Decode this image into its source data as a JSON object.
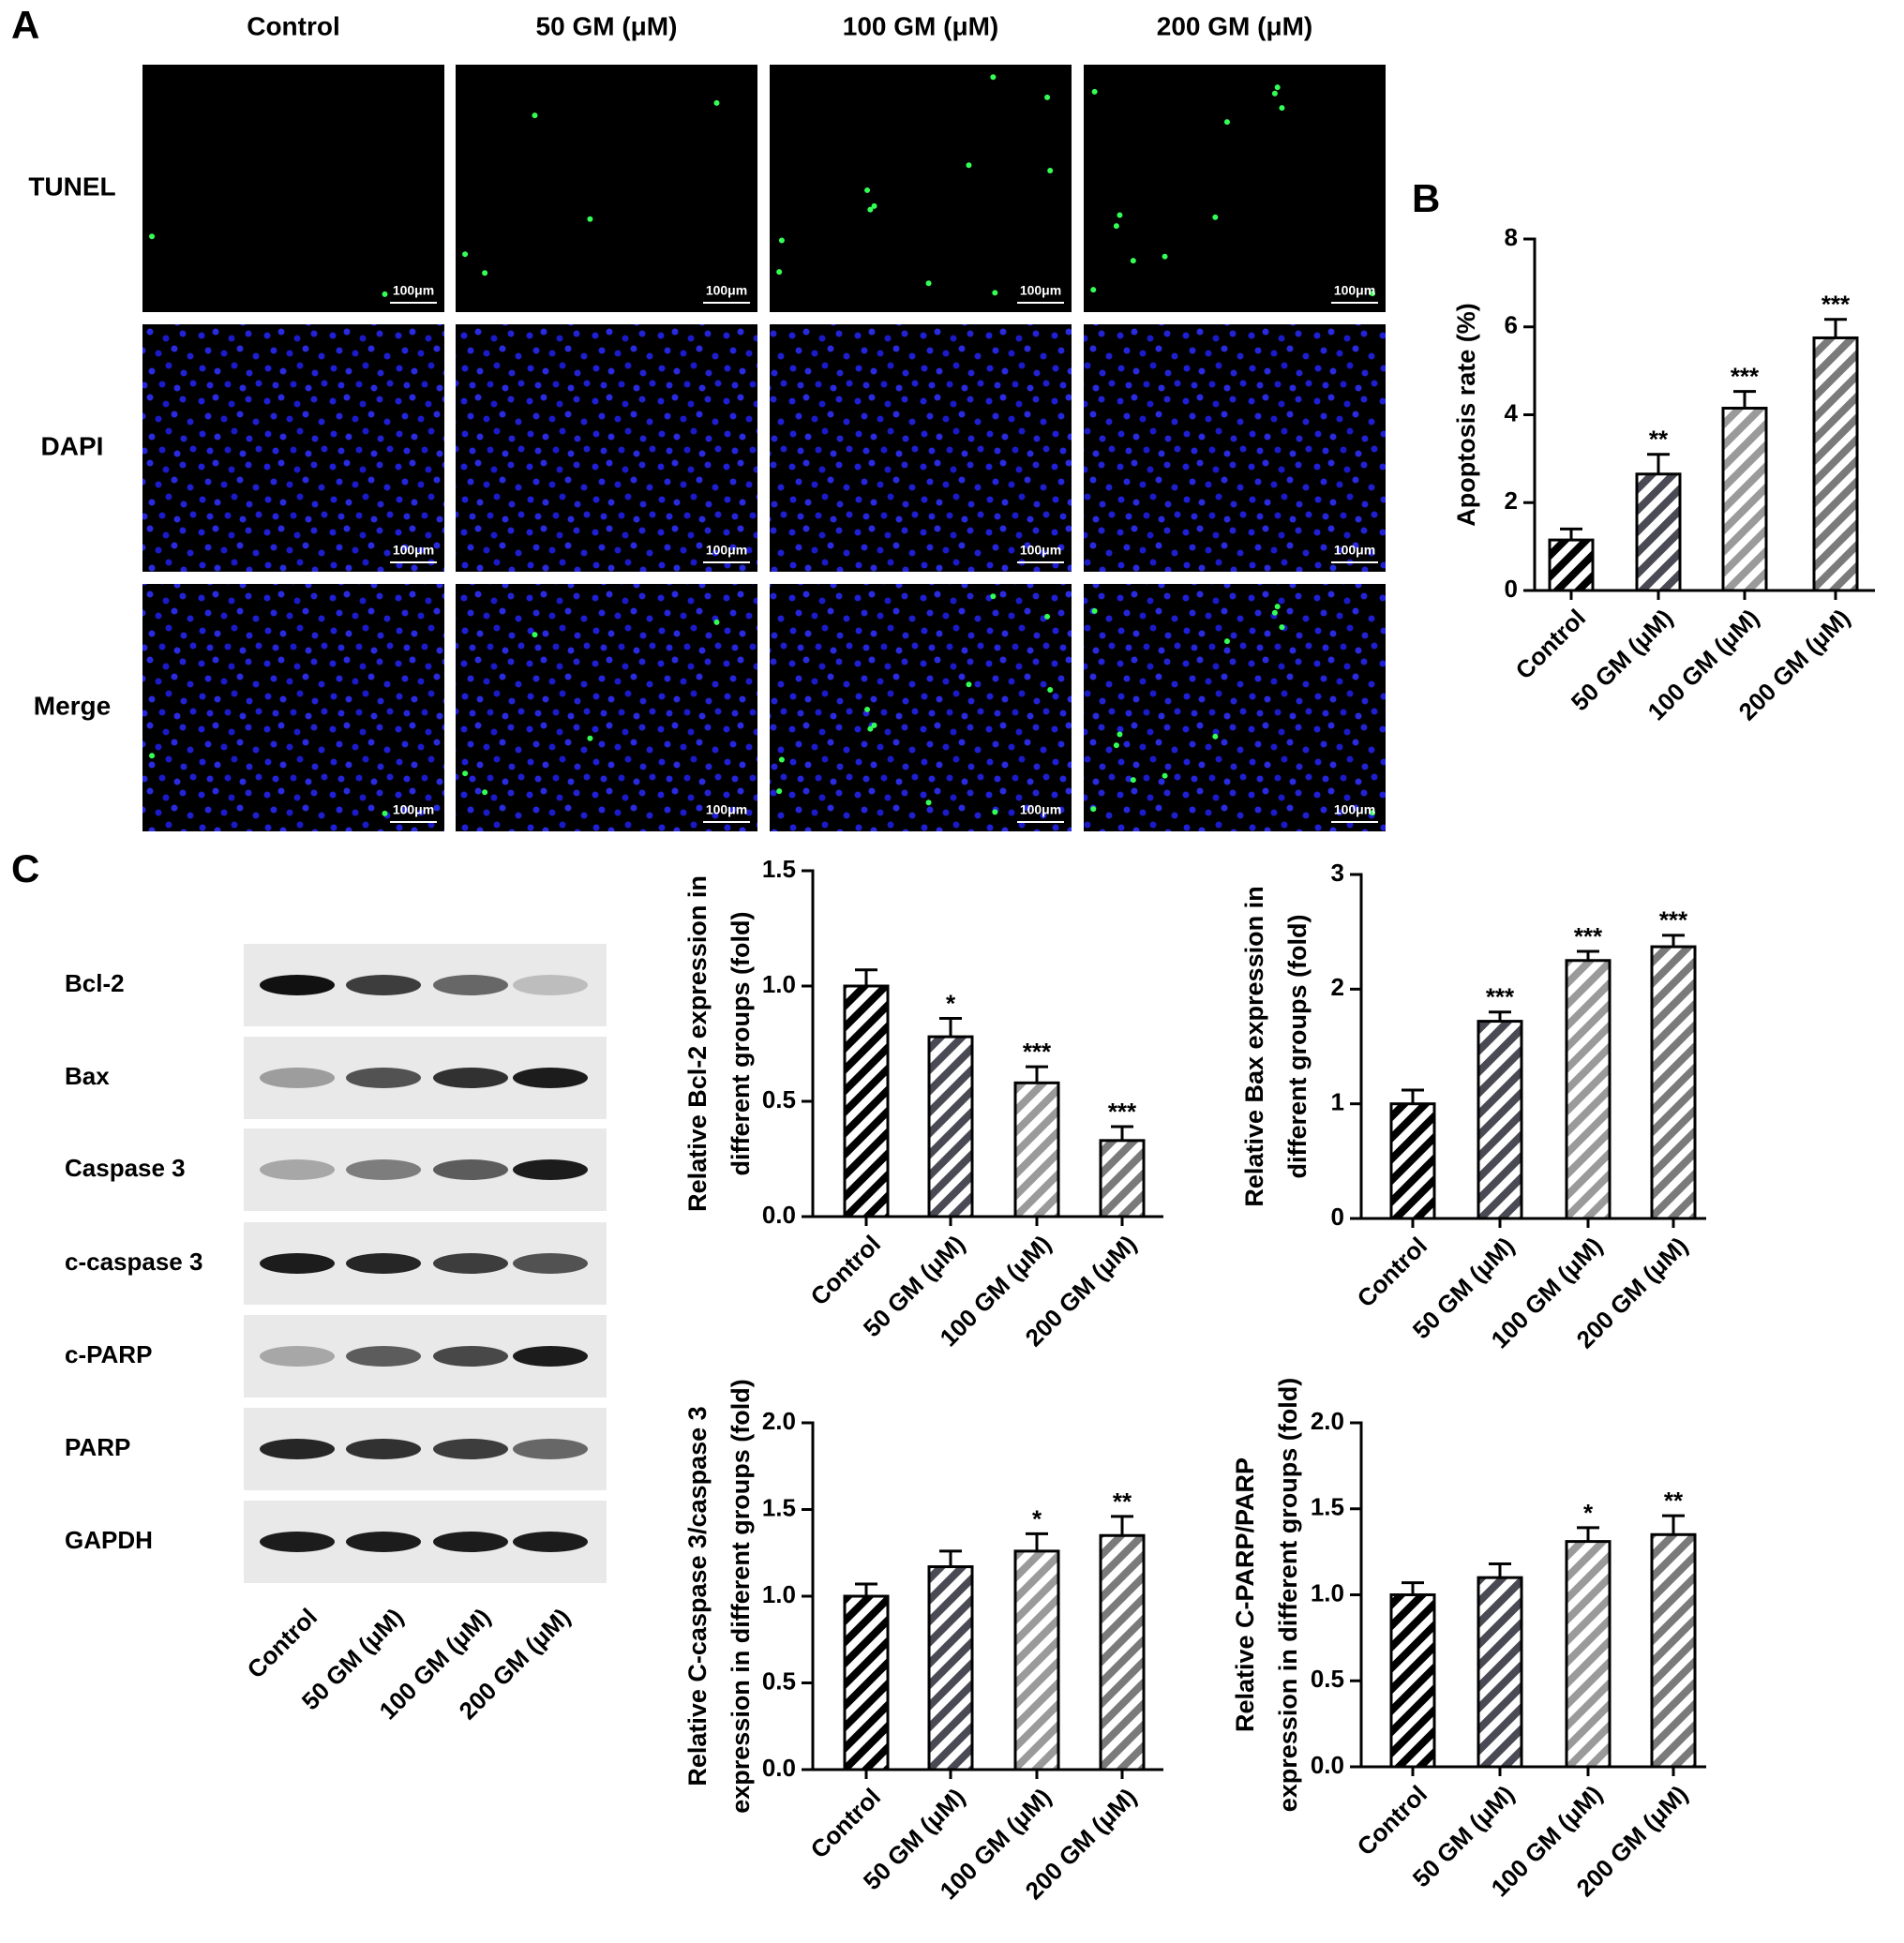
{
  "panels": {
    "a": "A",
    "b": "B",
    "c": "C"
  },
  "microscopy": {
    "groups": [
      "Control",
      "50 GM (μM)",
      "100 GM (μM)",
      "200 GM (μM)"
    ],
    "stains": [
      "TUNEL",
      "DAPI",
      "Merge"
    ],
    "scale_bar": "100μm"
  },
  "western_blot": {
    "proteins": [
      "Bcl-2",
      "Bax",
      "Caspase 3",
      "c-caspase 3",
      "c-PARP",
      "PARP",
      "GAPDH"
    ],
    "groups": [
      "Control",
      "50 GM (μM)",
      "100 GM (μM)",
      "200 GM (μM)"
    ]
  },
  "chart_data": [
    {
      "type": "bar",
      "ylabel": [
        "Apoptosis rate (%)"
      ],
      "categories": [
        "Control",
        "50 GM (μM)",
        "100 GM (μM)",
        "200 GM (μM)"
      ],
      "values": [
        1.15,
        2.65,
        4.15,
        5.75
      ],
      "errors": [
        0.25,
        0.45,
        0.38,
        0.42
      ],
      "significance": [
        null,
        "**",
        "***",
        "***"
      ],
      "colors": [
        "#000000",
        "#4a4a55",
        "#9a9a9a",
        "#7a7a7a"
      ],
      "ylim": [
        0,
        8
      ],
      "yticks": [
        0,
        2,
        4,
        6,
        8
      ]
    },
    {
      "type": "bar",
      "ylabel": [
        "Relative Bcl-2 expression in",
        "different groups (fold)"
      ],
      "categories": [
        "Control",
        "50 GM (μM)",
        "100 GM (μM)",
        "200 GM (μM)"
      ],
      "values": [
        1.0,
        0.78,
        0.58,
        0.33
      ],
      "errors": [
        0.07,
        0.08,
        0.07,
        0.06
      ],
      "significance": [
        null,
        "*",
        "***",
        "***"
      ],
      "colors": [
        "#000000",
        "#4a4a55",
        "#9a9a9a",
        "#7a7a7a"
      ],
      "ylim": [
        0,
        1.5
      ],
      "yticks": [
        {
          "value": 0,
          "label": "0.0"
        },
        0.5,
        {
          "value": 1,
          "label": "1.0"
        },
        1.5
      ]
    },
    {
      "type": "bar",
      "ylabel": [
        "Relative Bax expression in",
        "different groups (fold)"
      ],
      "categories": [
        "Control",
        "50 GM (μM)",
        "100 GM (μM)",
        "200 GM (μM)"
      ],
      "values": [
        1.0,
        1.72,
        2.25,
        2.37
      ],
      "errors": [
        0.12,
        0.08,
        0.08,
        0.1
      ],
      "significance": [
        null,
        "***",
        "***",
        "***"
      ],
      "colors": [
        "#000000",
        "#4a4a55",
        "#9a9a9a",
        "#7a7a7a"
      ],
      "ylim": [
        0,
        3
      ],
      "yticks": [
        0,
        1,
        2,
        3
      ]
    },
    {
      "type": "bar",
      "ylabel": [
        "Relative C-caspase 3/caspase 3",
        "expression in different groups (fold)"
      ],
      "categories": [
        "Control",
        "50 GM (μM)",
        "100 GM (μM)",
        "200 GM (μM)"
      ],
      "values": [
        1.0,
        1.17,
        1.26,
        1.35
      ],
      "errors": [
        0.07,
        0.09,
        0.1,
        0.11
      ],
      "significance": [
        null,
        null,
        "*",
        "**"
      ],
      "colors": [
        "#000000",
        "#4a4a55",
        "#9a9a9a",
        "#7a7a7a"
      ],
      "ylim": [
        0,
        2
      ],
      "yticks": [
        {
          "value": 0,
          "label": "0.0"
        },
        0.5,
        {
          "value": 1,
          "label": "1.0"
        },
        1.5,
        {
          "value": 2,
          "label": "2.0"
        }
      ]
    },
    {
      "type": "bar",
      "ylabel": [
        "Relative C-PARP/PARP",
        "expression in different groups (fold)"
      ],
      "categories": [
        "Control",
        "50 GM (μM)",
        "100 GM (μM)",
        "200 GM (μM)"
      ],
      "values": [
        1.0,
        1.1,
        1.31,
        1.35
      ],
      "errors": [
        0.07,
        0.08,
        0.08,
        0.11
      ],
      "significance": [
        null,
        null,
        "*",
        "**"
      ],
      "colors": [
        "#000000",
        "#4a4a55",
        "#9a9a9a",
        "#7a7a7a"
      ],
      "ylim": [
        0,
        2
      ],
      "yticks": [
        {
          "value": 0,
          "label": "0.0"
        },
        0.5,
        {
          "value": 1,
          "label": "1.0"
        },
        1.5,
        {
          "value": 2,
          "label": "2.0"
        }
      ]
    }
  ]
}
